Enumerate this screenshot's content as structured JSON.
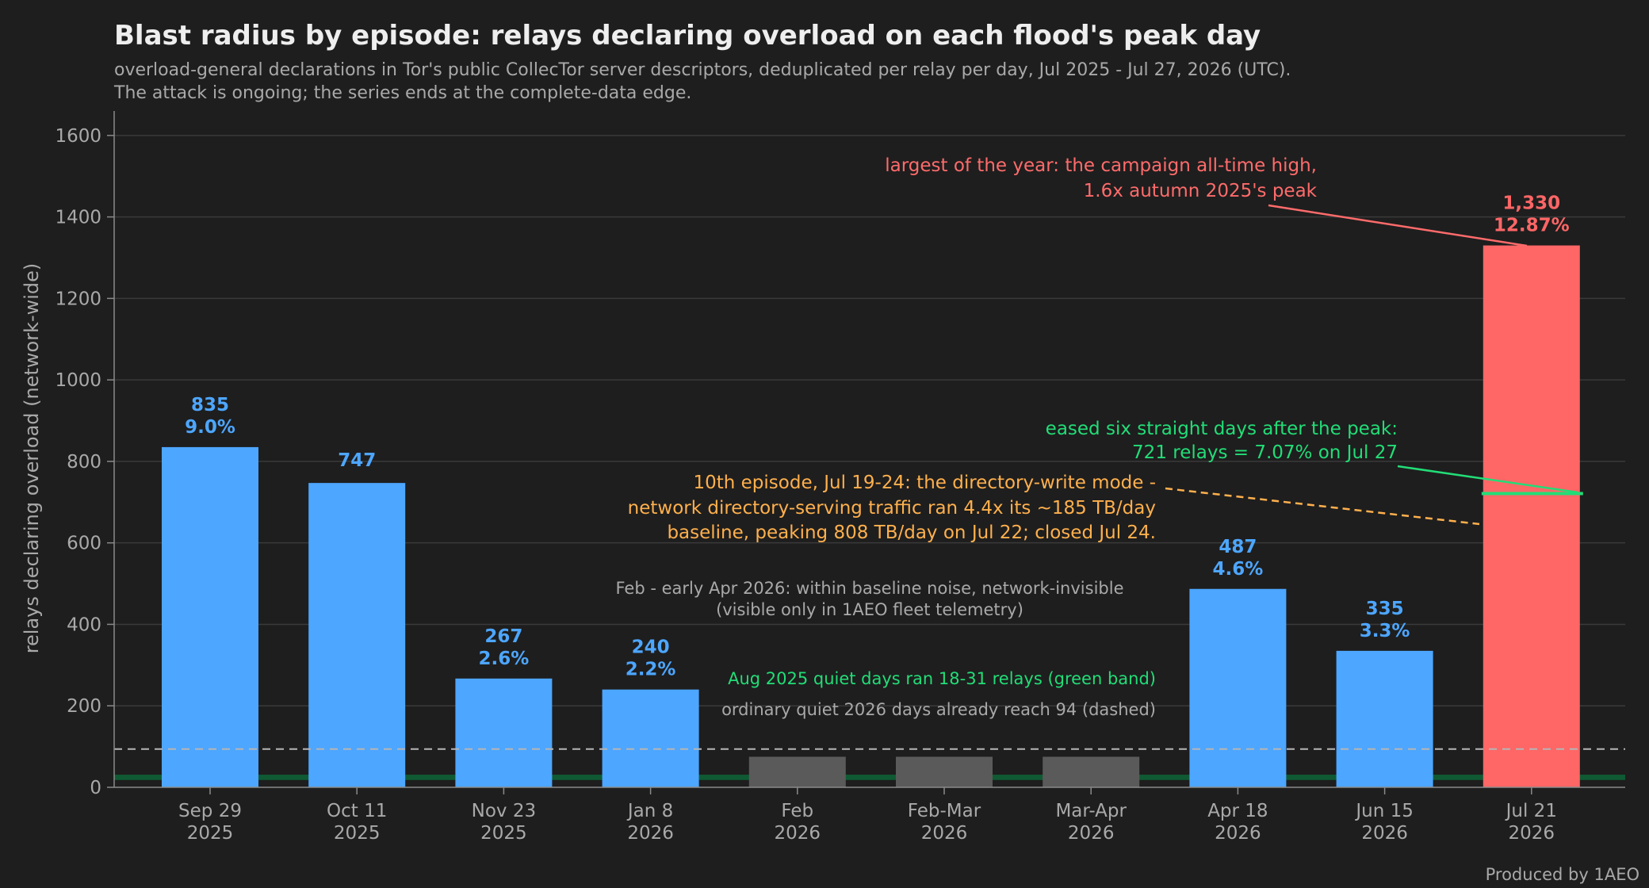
{
  "chart_data": {
    "type": "bar",
    "title": "Blast radius by episode: relays declaring overload on each flood's peak day",
    "subtitle": [
      "overload-general declarations in Tor's public CollecTor server descriptors, deduplicated per relay per day, Jul 2025 - Jul 27, 2026 (UTC).",
      "The attack is ongoing; the series ends at the complete-data edge."
    ],
    "ylabel": "relays declaring overload (network-wide)",
    "ylim": [
      0,
      1660
    ],
    "yticks": [
      0,
      200,
      400,
      600,
      800,
      1000,
      1200,
      1400,
      1600
    ],
    "grid": true,
    "colors": {
      "background": "#1e1e1e",
      "episode": "#4da6ff",
      "quiet": "#5a5a5a",
      "peak": "#ff6666",
      "green": "#22dd77",
      "orange": "#ffb04d",
      "grey": "#a9a9a9"
    },
    "bars": [
      {
        "label": [
          "Sep 29",
          "2025"
        ],
        "value": 835,
        "value_label": "835",
        "pct_label": "9.0%",
        "kind": "episode"
      },
      {
        "label": [
          "Oct 11",
          "2025"
        ],
        "value": 747,
        "value_label": "747",
        "pct_label": "",
        "kind": "episode"
      },
      {
        "label": [
          "Nov 23",
          "2025"
        ],
        "value": 267,
        "value_label": "267",
        "pct_label": "2.6%",
        "kind": "episode"
      },
      {
        "label": [
          "Jan 8",
          "2026"
        ],
        "value": 240,
        "value_label": "240",
        "pct_label": "2.2%",
        "kind": "episode"
      },
      {
        "label": [
          "Feb",
          "2026"
        ],
        "value": 75,
        "value_label": "",
        "pct_label": "",
        "kind": "quiet"
      },
      {
        "label": [
          "Feb-Mar",
          "2026"
        ],
        "value": 75,
        "value_label": "",
        "pct_label": "",
        "kind": "quiet"
      },
      {
        "label": [
          "Mar-Apr",
          "2026"
        ],
        "value": 75,
        "value_label": "",
        "pct_label": "",
        "kind": "quiet"
      },
      {
        "label": [
          "Apr 18",
          "2026"
        ],
        "value": 487,
        "value_label": "487",
        "pct_label": "4.6%",
        "kind": "episode"
      },
      {
        "label": [
          "Jun 15",
          "2026"
        ],
        "value": 335,
        "value_label": "335",
        "pct_label": "3.3%",
        "kind": "episode"
      },
      {
        "label": [
          "Jul 21",
          "2026"
        ],
        "value": 1330,
        "value_label": "1,330",
        "pct_label": "12.87%",
        "kind": "peak"
      }
    ],
    "reference_lines": {
      "quiet_2026_dashed": 94,
      "aug_2025_green_band": [
        18,
        31
      ],
      "eased_jul_27": 721
    },
    "annotations": {
      "peak": [
        "largest of the year: the campaign all-time high,",
        "1.6x autumn 2025's peak"
      ],
      "eased": [
        "eased six straight days after the peak:",
        "721 relays = 7.07% on Jul 27"
      ],
      "episode10": [
        "10th episode, Jul 19-24: the directory-write mode -",
        "network directory-serving traffic ran 4.4x its ~185 TB/day",
        "baseline, peaking 808 TB/day on Jul 22; closed Jul 24."
      ],
      "quiet_period": [
        "Feb - early Apr 2026: within baseline noise, network-invisible",
        "(visible only in 1AEO fleet telemetry)"
      ],
      "green_band_note": "Aug 2025 quiet days ran 18-31 relays (green band)",
      "dashed_note": "ordinary quiet 2026 days already reach 94 (dashed)"
    },
    "credit": "Produced by 1AEO"
  }
}
